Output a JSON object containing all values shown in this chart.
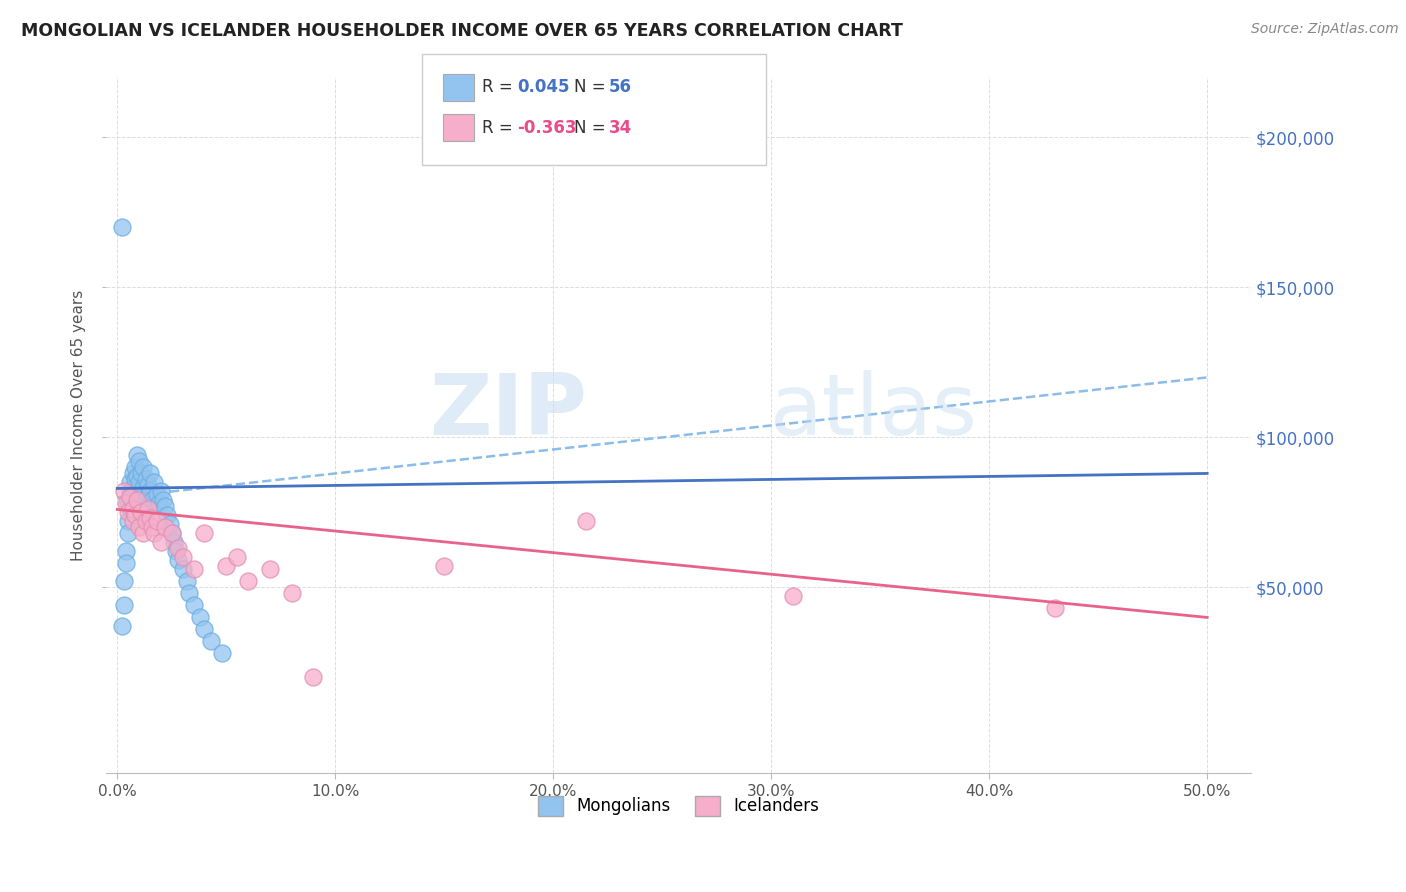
{
  "title": "MONGOLIAN VS ICELANDER HOUSEHOLDER INCOME OVER 65 YEARS CORRELATION CHART",
  "source": "Source: ZipAtlas.com",
  "ylabel": "Householder Income Over 65 years",
  "xlabel_ticks": [
    "0.0%",
    "10.0%",
    "20.0%",
    "30.0%",
    "40.0%",
    "50.0%"
  ],
  "xlabel_vals": [
    0.0,
    0.1,
    0.2,
    0.3,
    0.4,
    0.5
  ],
  "ytick_labels": [
    "$50,000",
    "$100,000",
    "$150,000",
    "$200,000"
  ],
  "ytick_vals": [
    50000,
    100000,
    150000,
    200000
  ],
  "xlim": [
    -0.005,
    0.52
  ],
  "ylim": [
    -12000,
    220000
  ],
  "mongolian_color": "#93C4F0",
  "icelander_color": "#F7AECB",
  "mongolian_line_color": "#4472C4",
  "icelander_line_color": "#E8638A",
  "dashed_line_color": "#7EB5E8",
  "background_color": "#FFFFFF",
  "grid_color": "#DDDDDD",
  "mongolians_x": [
    0.002,
    0.002,
    0.003,
    0.003,
    0.004,
    0.004,
    0.005,
    0.005,
    0.005,
    0.006,
    0.006,
    0.006,
    0.006,
    0.007,
    0.007,
    0.007,
    0.008,
    0.008,
    0.008,
    0.009,
    0.009,
    0.009,
    0.01,
    0.01,
    0.01,
    0.011,
    0.011,
    0.012,
    0.012,
    0.013,
    0.013,
    0.014,
    0.014,
    0.015,
    0.015,
    0.016,
    0.017,
    0.018,
    0.019,
    0.02,
    0.021,
    0.022,
    0.023,
    0.024,
    0.025,
    0.026,
    0.027,
    0.028,
    0.03,
    0.032,
    0.033,
    0.035,
    0.038,
    0.04,
    0.043,
    0.048
  ],
  "mongolians_y": [
    170000,
    37000,
    52000,
    44000,
    62000,
    58000,
    72000,
    78000,
    68000,
    82000,
    76000,
    85000,
    80000,
    88000,
    83000,
    75000,
    90000,
    86000,
    79000,
    87000,
    82000,
    94000,
    85000,
    92000,
    75000,
    88000,
    80000,
    90000,
    83000,
    86000,
    79000,
    84000,
    77000,
    88000,
    82000,
    79000,
    85000,
    81000,
    78000,
    82000,
    79000,
    77000,
    74000,
    71000,
    68000,
    65000,
    62000,
    59000,
    56000,
    52000,
    48000,
    44000,
    40000,
    36000,
    32000,
    28000
  ],
  "icelanders_x": [
    0.003,
    0.004,
    0.005,
    0.006,
    0.007,
    0.007,
    0.008,
    0.009,
    0.01,
    0.011,
    0.012,
    0.013,
    0.014,
    0.015,
    0.016,
    0.017,
    0.018,
    0.02,
    0.022,
    0.025,
    0.028,
    0.03,
    0.035,
    0.04,
    0.05,
    0.055,
    0.06,
    0.07,
    0.08,
    0.09,
    0.15,
    0.215,
    0.31,
    0.43
  ],
  "icelanders_y": [
    82000,
    78000,
    75000,
    80000,
    72000,
    76000,
    74000,
    79000,
    70000,
    75000,
    68000,
    72000,
    76000,
    73000,
    70000,
    68000,
    72000,
    65000,
    70000,
    68000,
    63000,
    60000,
    56000,
    68000,
    57000,
    60000,
    52000,
    56000,
    48000,
    20000,
    57000,
    72000,
    47000,
    43000
  ],
  "dashed_line_x": [
    0.0,
    0.5
  ],
  "dashed_line_y": [
    80000,
    120000
  ],
  "mongolian_trend_x": [
    0.0,
    0.5
  ],
  "mongolian_trend_y": [
    83000,
    88000
  ],
  "icelander_trend_x": [
    0.0,
    0.5
  ],
  "icelander_trend_y": [
    76000,
    40000
  ]
}
